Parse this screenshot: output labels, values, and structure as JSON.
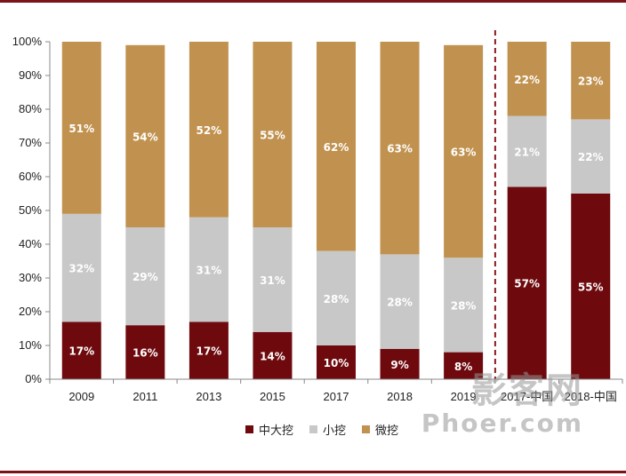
{
  "colors": {
    "large": "#6e0a0e",
    "small": "#c8c8c8",
    "micro": "#c1924f",
    "divider": "#8b1a1f",
    "frame": "#7a1418"
  },
  "watermark": {
    "line1": "影客网",
    "line2": "Phoer.com"
  },
  "chart_data": {
    "type": "bar",
    "stacked": true,
    "categories": [
      "2009",
      "2011",
      "2013",
      "2015",
      "2017",
      "2018",
      "2019",
      "2017-中国",
      "2018-中国"
    ],
    "ylim": [
      0,
      100
    ],
    "yticks": [
      "0%",
      "10%",
      "20%",
      "30%",
      "40%",
      "50%",
      "60%",
      "70%",
      "80%",
      "90%",
      "100%"
    ],
    "series": [
      {
        "name": "中大挖",
        "values": [
          17,
          16,
          17,
          14,
          10,
          9,
          8,
          57,
          55
        ],
        "labels": [
          "17%",
          "16%",
          "17%",
          "14%",
          "10%",
          "9%",
          "8%",
          "57%",
          "55%"
        ]
      },
      {
        "name": "小挖",
        "values": [
          32,
          29,
          31,
          31,
          28,
          28,
          28,
          21,
          22
        ],
        "labels": [
          "32%",
          "29%",
          "31%",
          "31%",
          "28%",
          "28%",
          "28%",
          "21%",
          "22%"
        ]
      },
      {
        "name": "微挖",
        "values": [
          51,
          54,
          52,
          55,
          62,
          63,
          63,
          22,
          23
        ],
        "labels": [
          "51%",
          "54%",
          "52%",
          "55%",
          "62%",
          "63%",
          "63%",
          "22%",
          "23%"
        ]
      }
    ],
    "divider_after_category": "2019",
    "legend_position": "bottom"
  }
}
